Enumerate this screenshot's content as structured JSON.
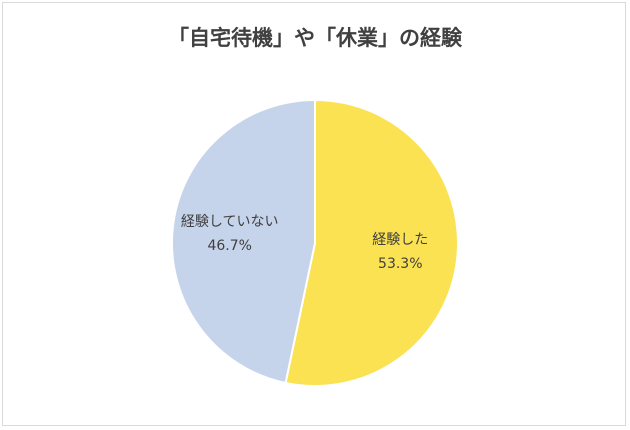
{
  "chart_data": {
    "type": "pie",
    "title": "「自宅待機」や「休業」の経験",
    "slices": [
      {
        "label": "経験した",
        "value": 53.3,
        "value_label": "53.3%",
        "color": "#fae253"
      },
      {
        "label": "経験していない",
        "value": 46.7,
        "value_label": "46.7%",
        "color": "#c5d3eb"
      }
    ],
    "start_angle": "12 o'clock",
    "direction": "clockwise",
    "legend": "none",
    "data_labels": "inside"
  }
}
